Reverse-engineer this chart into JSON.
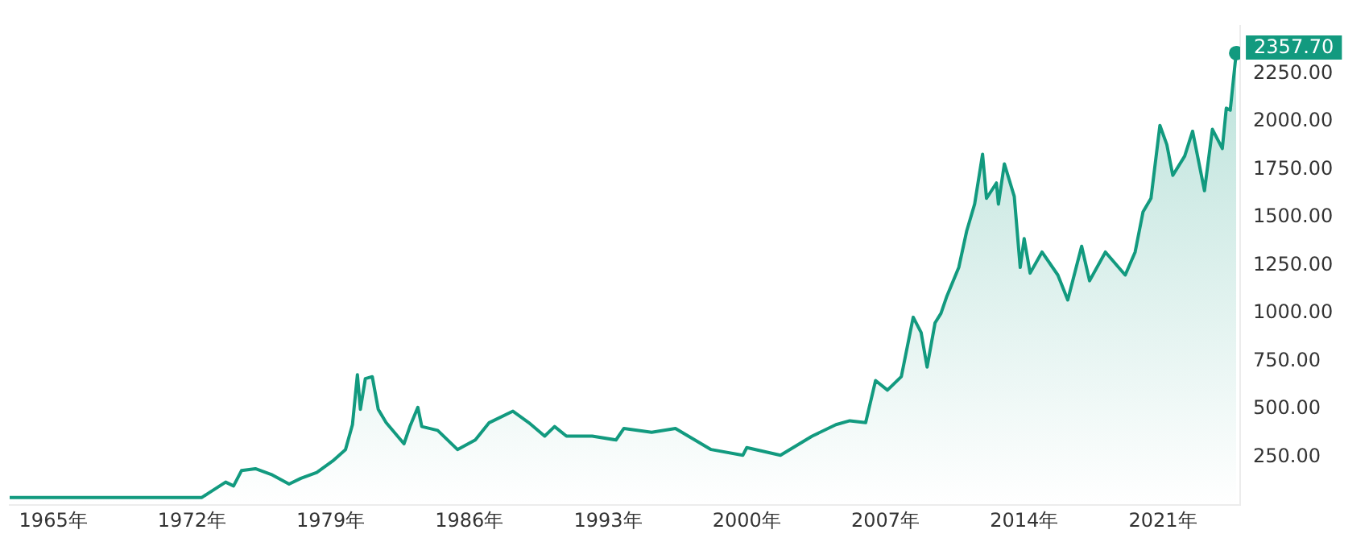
{
  "chart_data": {
    "type": "area",
    "grid": false,
    "legend": false,
    "line_style": "solid",
    "xlim": [
      1962.8,
      2024.9
    ],
    "ylim": [
      0,
      2500
    ],
    "xticks": [
      {
        "value": 1965,
        "label": "1965年"
      },
      {
        "value": 1972,
        "label": "1972年"
      },
      {
        "value": 1979,
        "label": "1979年"
      },
      {
        "value": 1986,
        "label": "1986年"
      },
      {
        "value": 1993,
        "label": "1993年"
      },
      {
        "value": 2000,
        "label": "2000年"
      },
      {
        "value": 2007,
        "label": "2007年"
      },
      {
        "value": 2014,
        "label": "2014年"
      },
      {
        "value": 2021,
        "label": "2021年"
      }
    ],
    "yticks": [
      {
        "value": 250,
        "label": "250.00"
      },
      {
        "value": 500,
        "label": "500.00"
      },
      {
        "value": 750,
        "label": "750.00"
      },
      {
        "value": 1000,
        "label": "1000.00"
      },
      {
        "value": 1250,
        "label": "1250.00"
      },
      {
        "value": 1500,
        "label": "1500.00"
      },
      {
        "value": 1750,
        "label": "1750.00"
      },
      {
        "value": 2000,
        "label": "2000.00"
      },
      {
        "value": 2250,
        "label": "2250.00"
      }
    ],
    "annotations": [
      {
        "text": "2357.70",
        "x": 2024.7,
        "y": 2357.7
      }
    ],
    "series": [
      {
        "color": "#129a7f",
        "x": [
          1962.8,
          1968.5,
          1969.3,
          1970.7,
          1972.5,
          1972.8,
          1973.7,
          1974.1,
          1974.5,
          1975.2,
          1976.0,
          1976.9,
          1977.5,
          1978.3,
          1979.1,
          1979.75,
          1980.1,
          1980.35,
          1980.5,
          1980.75,
          1981.1,
          1981.4,
          1981.8,
          1982.7,
          1983.0,
          1983.4,
          1983.6,
          1984.4,
          1985.4,
          1986.3,
          1987.0,
          1988.2,
          1989.0,
          1989.8,
          1990.3,
          1990.9,
          1992.2,
          1993.4,
          1993.8,
          1995.2,
          1996.4,
          1998.2,
          1999.8,
          2000.0,
          2001.7,
          2003.3,
          2004.5,
          2005.2,
          2006.0,
          2006.5,
          2007.1,
          2007.8,
          2008.4,
          2008.8,
          2009.1,
          2009.5,
          2009.8,
          2010.1,
          2010.7,
          2011.1,
          2011.5,
          2011.9,
          2012.1,
          2012.6,
          2012.7,
          2013.0,
          2013.5,
          2013.8,
          2014.0,
          2014.3,
          2014.9,
          2015.7,
          2016.2,
          2016.9,
          2017.3,
          2018.1,
          2019.1,
          2019.6,
          2020.0,
          2020.4,
          2020.85,
          2021.2,
          2021.5,
          2022.1,
          2022.5,
          2023.1,
          2023.5,
          2024.0,
          2024.2,
          2024.4,
          2024.7
        ],
        "values": [
          40,
          40,
          40,
          40,
          40,
          60,
          120,
          100,
          180,
          190,
          160,
          110,
          140,
          170,
          230,
          290,
          420,
          680,
          500,
          660,
          670,
          500,
          430,
          320,
          410,
          510,
          410,
          390,
          290,
          340,
          430,
          490,
          430,
          360,
          410,
          360,
          360,
          340,
          400,
          380,
          400,
          290,
          260,
          300,
          260,
          360,
          420,
          440,
          430,
          650,
          600,
          670,
          980,
          900,
          720,
          950,
          1000,
          1090,
          1240,
          1430,
          1570,
          1830,
          1600,
          1680,
          1570,
          1780,
          1610,
          1240,
          1390,
          1210,
          1320,
          1200,
          1070,
          1350,
          1170,
          1320,
          1200,
          1320,
          1530,
          1600,
          1980,
          1880,
          1720,
          1820,
          1950,
          1640,
          1960,
          1860,
          2070,
          2060,
          2357.7
        ]
      }
    ]
  }
}
